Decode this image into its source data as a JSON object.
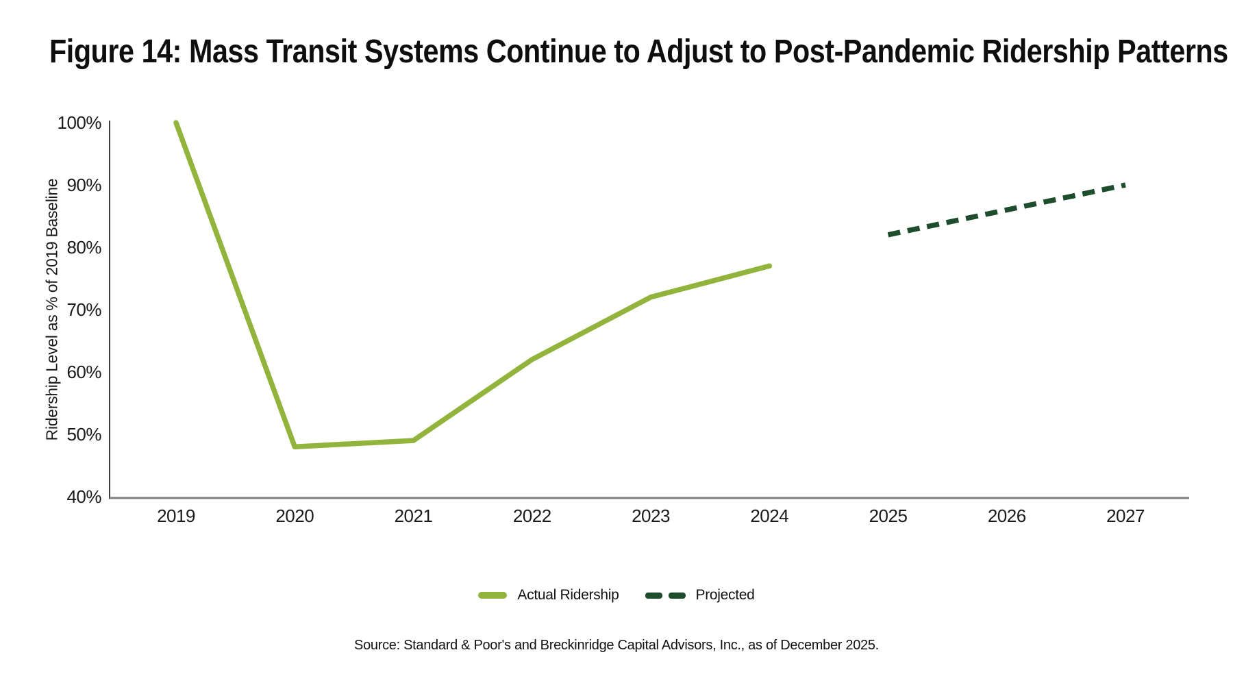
{
  "chart_data": {
    "type": "line",
    "title": "Figure 14: Mass Transit Systems Continue to Adjust to Post-Pandemic Ridership Patterns",
    "xlabel": "",
    "ylabel": "Ridership Level as % of 2019 Baseline",
    "categories": [
      "2019",
      "2020",
      "2021",
      "2022",
      "2023",
      "2024",
      "2025",
      "2026",
      "2027"
    ],
    "ylim": [
      40,
      100
    ],
    "grid": false,
    "legend_position": "bottom-center",
    "y_ticks": [
      {
        "label": "100%",
        "value": 100
      },
      {
        "label": "90%",
        "value": 90
      },
      {
        "label": "80%",
        "value": 80
      },
      {
        "label": "70%",
        "value": 70
      },
      {
        "label": "60%",
        "value": 60
      },
      {
        "label": "50%",
        "value": 50
      },
      {
        "label": "40%",
        "value": 40
      }
    ],
    "series": [
      {
        "name": "Actual Ridership",
        "line_style": "solid",
        "color": "#92B43C",
        "categories": [
          "2019",
          "2020",
          "2021",
          "2022",
          "2023",
          "2024"
        ],
        "values": [
          100,
          48,
          49,
          62,
          72,
          77
        ]
      },
      {
        "name": "Projected",
        "line_style": "dashed",
        "color": "#1D4D2C",
        "categories": [
          "2025",
          "2026",
          "2027"
        ],
        "values": [
          82,
          86,
          90
        ]
      }
    ]
  },
  "legend": {
    "items": [
      {
        "label": "Actual Ridership",
        "swatch": "solid-line",
        "color": "#92B43C"
      },
      {
        "label": "Projected",
        "swatch": "dashed-line",
        "color": "#1D4D2C"
      }
    ]
  },
  "source_note": "Source: Standard & Poor's and Breckinridge Capital Advisors, Inc., as of December 2025."
}
